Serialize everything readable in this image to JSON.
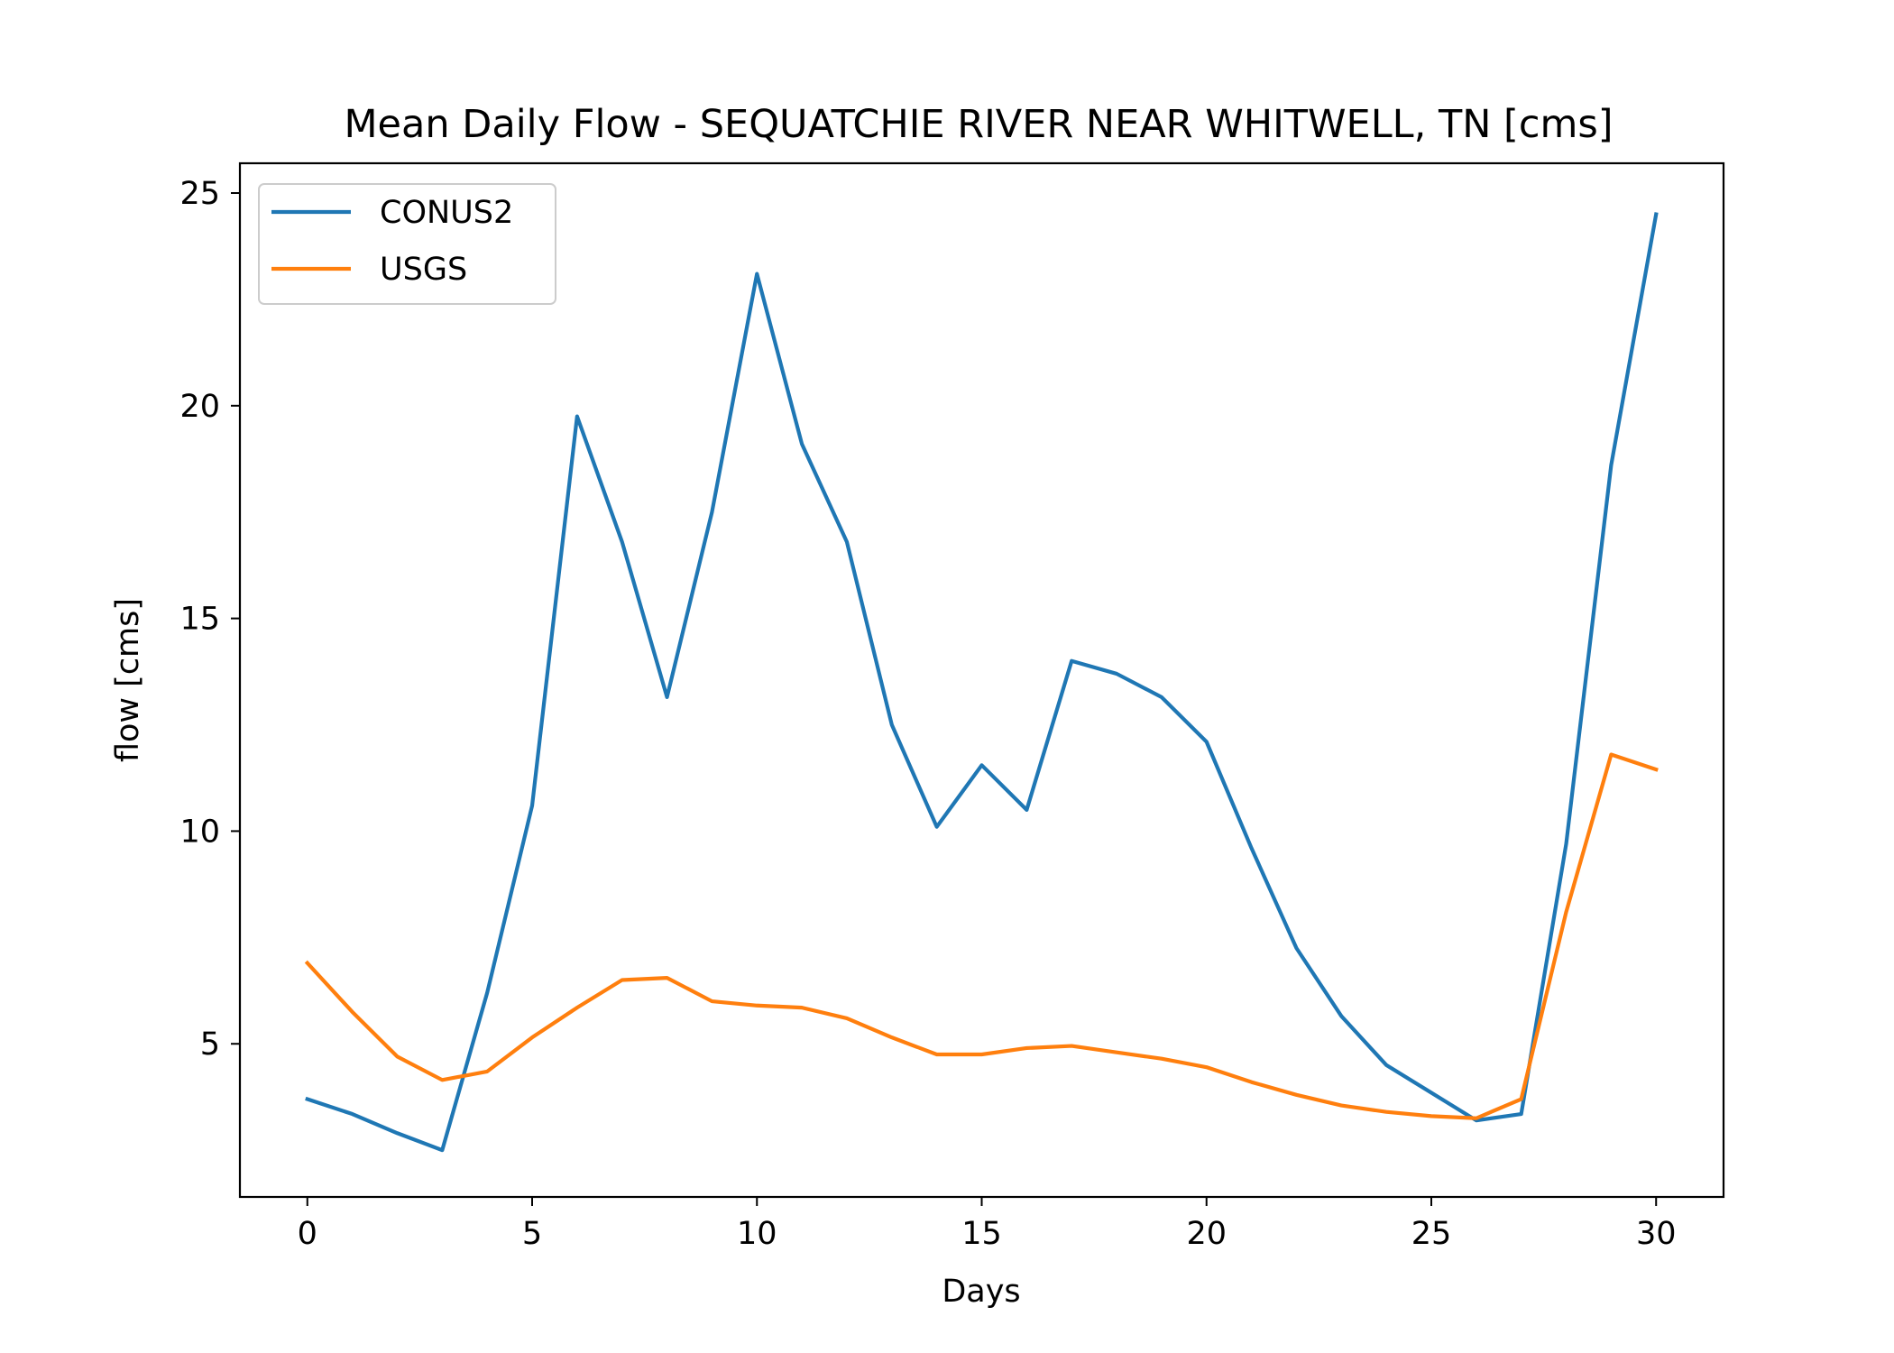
{
  "chart_data": {
    "type": "line",
    "title": "Mean Daily Flow - SEQUATCHIE RIVER NEAR WHITWELL, TN [cms]",
    "xlabel": "Days",
    "ylabel": "flow [cms]",
    "xlim": [
      -1.5,
      31.5
    ],
    "ylim": [
      1.4,
      25.7
    ],
    "xticks": [
      0,
      5,
      10,
      15,
      20,
      25,
      30
    ],
    "yticks": [
      5,
      10,
      15,
      20,
      25
    ],
    "grid": false,
    "legend_position": "upper left",
    "x": [
      0,
      1,
      2,
      3,
      4,
      5,
      6,
      7,
      8,
      9,
      10,
      11,
      12,
      13,
      14,
      15,
      16,
      17,
      18,
      19,
      20,
      21,
      22,
      23,
      24,
      25,
      26,
      27,
      28,
      29,
      30
    ],
    "series": [
      {
        "name": "CONUS2",
        "color": "#1f77b4",
        "values": [
          3.7,
          3.35,
          2.9,
          2.5,
          6.2,
          10.6,
          19.75,
          16.8,
          13.15,
          17.5,
          23.1,
          19.1,
          16.8,
          12.5,
          10.1,
          11.55,
          10.5,
          14.0,
          13.7,
          13.15,
          12.1,
          9.6,
          7.25,
          5.65,
          4.5,
          3.85,
          3.2,
          3.35,
          9.7,
          18.6,
          24.5
        ]
      },
      {
        "name": "USGS",
        "color": "#ff7f0e",
        "values": [
          6.9,
          5.75,
          4.7,
          4.15,
          4.35,
          5.15,
          5.85,
          6.5,
          6.55,
          6.0,
          5.9,
          5.85,
          5.6,
          5.15,
          4.75,
          4.75,
          4.9,
          4.95,
          4.8,
          4.65,
          4.45,
          4.1,
          3.8,
          3.55,
          3.4,
          3.3,
          3.25,
          3.7,
          8.1,
          11.8,
          11.45
        ]
      }
    ]
  }
}
